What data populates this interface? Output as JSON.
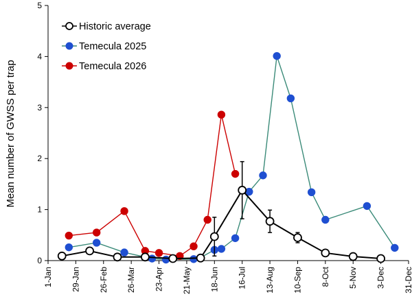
{
  "chart_data": {
    "type": "line",
    "title": "",
    "xlabel": "",
    "ylabel": "Mean number of GWSS per trap",
    "xlim": [
      "2026-01-01",
      "2026-12-31"
    ],
    "ylim": [
      0,
      5
    ],
    "yticks": [
      0,
      1,
      2,
      3,
      4,
      5
    ],
    "xticks": [
      {
        "date": "2026-01-01",
        "label": "1-Jan"
      },
      {
        "date": "2026-01-29",
        "label": "29-Jan"
      },
      {
        "date": "2026-02-26",
        "label": "26-Feb"
      },
      {
        "date": "2026-03-26",
        "label": "26-Mar"
      },
      {
        "date": "2026-04-23",
        "label": "23-Apr"
      },
      {
        "date": "2026-05-21",
        "label": "21-May"
      },
      {
        "date": "2026-06-18",
        "label": "18-Jun"
      },
      {
        "date": "2026-07-16",
        "label": "16-Jul"
      },
      {
        "date": "2026-08-13",
        "label": "13-Aug"
      },
      {
        "date": "2026-09-10",
        "label": "10-Sep"
      },
      {
        "date": "2026-10-08",
        "label": "8-Oct"
      },
      {
        "date": "2026-11-05",
        "label": "5-Nov"
      },
      {
        "date": "2026-12-03",
        "label": "3-Dec"
      },
      {
        "date": "2026-12-31",
        "label": "31-Dec"
      }
    ],
    "grid": false,
    "legend_position": "top-left",
    "series": [
      {
        "name": "Historic average",
        "line_color": "#000000",
        "marker_fill": "#ffffff",
        "marker_stroke": "#000000",
        "points": [
          {
            "x": "2026-01-15",
            "y": 0.09
          },
          {
            "x": "2026-02-12",
            "y": 0.19
          },
          {
            "x": "2026-03-12",
            "y": 0.07
          },
          {
            "x": "2026-04-09",
            "y": 0.07
          },
          {
            "x": "2026-05-07",
            "y": 0.04
          },
          {
            "x": "2026-06-04",
            "y": 0.05
          },
          {
            "x": "2026-06-18",
            "y": 0.47,
            "err": 0.38
          },
          {
            "x": "2026-07-16",
            "y": 1.38,
            "err": 0.56
          },
          {
            "x": "2026-08-13",
            "y": 0.77,
            "err": 0.22
          },
          {
            "x": "2026-09-10",
            "y": 0.45,
            "err": 0.1
          },
          {
            "x": "2026-10-08",
            "y": 0.15
          },
          {
            "x": "2026-11-05",
            "y": 0.08
          },
          {
            "x": "2026-12-03",
            "y": 0.04
          }
        ]
      },
      {
        "name": "Temecula 2025",
        "line_color": "#3a8a78",
        "marker_fill": "#1f4fd1",
        "marker_stroke": "#1f4fd1",
        "points": [
          {
            "x": "2026-01-22",
            "y": 0.26
          },
          {
            "x": "2026-02-19",
            "y": 0.35
          },
          {
            "x": "2026-03-19",
            "y": 0.16
          },
          {
            "x": "2026-04-16",
            "y": 0.04
          },
          {
            "x": "2026-04-30",
            "y": 0.02
          },
          {
            "x": "2026-05-28",
            "y": 0.03
          },
          {
            "x": "2026-06-04",
            "y": 0.06
          },
          {
            "x": "2026-06-18",
            "y": 0.21
          },
          {
            "x": "2026-06-25",
            "y": 0.23
          },
          {
            "x": "2026-07-09",
            "y": 0.44
          },
          {
            "x": "2026-07-23",
            "y": 1.35
          },
          {
            "x": "2026-08-06",
            "y": 1.67
          },
          {
            "x": "2026-08-20",
            "y": 4.01
          },
          {
            "x": "2026-09-03",
            "y": 3.18
          },
          {
            "x": "2026-09-24",
            "y": 1.34
          },
          {
            "x": "2026-10-08",
            "y": 0.8
          },
          {
            "x": "2026-11-19",
            "y": 1.07
          },
          {
            "x": "2026-12-17",
            "y": 0.25
          }
        ]
      },
      {
        "name": "Temecula 2026",
        "line_color": "#cc0000",
        "marker_fill": "#cc0000",
        "marker_stroke": "#cc0000",
        "points": [
          {
            "x": "2026-01-22",
            "y": 0.49
          },
          {
            "x": "2026-02-19",
            "y": 0.55
          },
          {
            "x": "2026-03-19",
            "y": 0.97
          },
          {
            "x": "2026-04-09",
            "y": 0.19
          },
          {
            "x": "2026-04-23",
            "y": 0.15
          },
          {
            "x": "2026-05-14",
            "y": 0.09
          },
          {
            "x": "2026-05-28",
            "y": 0.28
          },
          {
            "x": "2026-06-11",
            "y": 0.8
          },
          {
            "x": "2026-06-25",
            "y": 2.86
          },
          {
            "x": "2026-07-09",
            "y": 1.7
          }
        ]
      }
    ]
  }
}
